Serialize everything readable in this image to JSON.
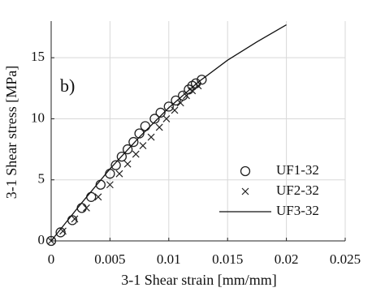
{
  "chart_data": {
    "type": "scatter",
    "xlabel": "3-1 Shear strain [mm/mm]",
    "ylabel": "3-1 Shear stress [MPa]",
    "annotation": "b)",
    "xlim": [
      0,
      0.025
    ],
    "ylim": [
      0,
      18
    ],
    "xticks": [
      0,
      0.005,
      0.01,
      0.015,
      0.02,
      0.025
    ],
    "yticks": [
      0,
      5,
      10,
      15
    ],
    "grid": true,
    "legend": "lower right",
    "series": [
      {
        "name": "UF1-32",
        "color": "#222222",
        "marker": "o",
        "x": [
          0,
          0.0008,
          0.0018,
          0.0026,
          0.0034,
          0.0042,
          0.005,
          0.0055,
          0.006,
          0.0065,
          0.007,
          0.0075,
          0.008,
          0.0088,
          0.0093,
          0.01,
          0.0106,
          0.0112,
          0.0117,
          0.012,
          0.0123,
          0.0128
        ],
        "values": [
          0,
          0.7,
          1.7,
          2.7,
          3.6,
          4.6,
          5.5,
          6.2,
          6.9,
          7.5,
          8.1,
          8.8,
          9.4,
          10.0,
          10.5,
          11.0,
          11.5,
          11.9,
          12.4,
          12.7,
          12.9,
          13.2
        ]
      },
      {
        "name": "UF2-32",
        "color": "#222222",
        "marker": "x",
        "x": [
          0,
          0.001,
          0.002,
          0.003,
          0.004,
          0.005,
          0.0058,
          0.0065,
          0.0072,
          0.0078,
          0.0085,
          0.0092,
          0.0098,
          0.0105,
          0.011,
          0.0115,
          0.012,
          0.0125
        ],
        "values": [
          0,
          0.8,
          1.8,
          2.7,
          3.6,
          4.6,
          5.5,
          6.3,
          7.1,
          7.8,
          8.5,
          9.3,
          10.0,
          10.7,
          11.3,
          11.9,
          12.3,
          12.7
        ]
      },
      {
        "name": "UF3-32",
        "color": "#111111",
        "marker": "line",
        "x": [
          0,
          0.0025,
          0.005,
          0.0075,
          0.01,
          0.0125,
          0.015,
          0.0175,
          0.02
        ],
        "values": [
          0,
          3.0,
          5.9,
          8.5,
          10.9,
          13.0,
          14.8,
          16.3,
          17.7
        ]
      }
    ]
  }
}
